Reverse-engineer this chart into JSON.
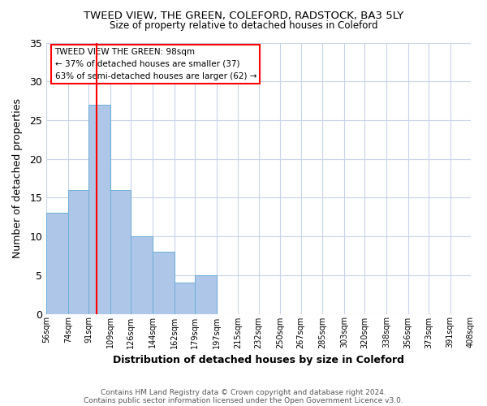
{
  "title1": "TWEED VIEW, THE GREEN, COLEFORD, RADSTOCK, BA3 5LY",
  "title2": "Size of property relative to detached houses in Coleford",
  "xlabel": "Distribution of detached houses by size in Coleford",
  "ylabel": "Number of detached properties",
  "annotation_line1": "TWEED VIEW THE GREEN: 98sqm",
  "annotation_line2": "← 37% of detached houses are smaller (37)",
  "annotation_line3": "63% of semi-detached houses are larger (62) →",
  "footnote1": "Contains HM Land Registry data © Crown copyright and database right 2024.",
  "footnote2": "Contains public sector information licensed under the Open Government Licence v3.0.",
  "bar_edges": [
    56,
    74,
    91,
    109,
    126,
    144,
    162,
    179,
    197,
    215,
    232,
    250,
    267,
    285,
    303,
    320,
    338,
    356,
    373,
    391,
    408
  ],
  "bar_heights": [
    13,
    16,
    27,
    16,
    10,
    8,
    4,
    5,
    0,
    0,
    0,
    0,
    0,
    0,
    0,
    0,
    0,
    0,
    0,
    0
  ],
  "bar_color": "#aec6e8",
  "bar_edgecolor": "#6baed6",
  "redline_x": 98,
  "ylim": [
    0,
    35
  ],
  "yticks": [
    0,
    5,
    10,
    15,
    20,
    25,
    30,
    35
  ],
  "background_color": "#ffffff",
  "grid_color": "#c8d4e8"
}
